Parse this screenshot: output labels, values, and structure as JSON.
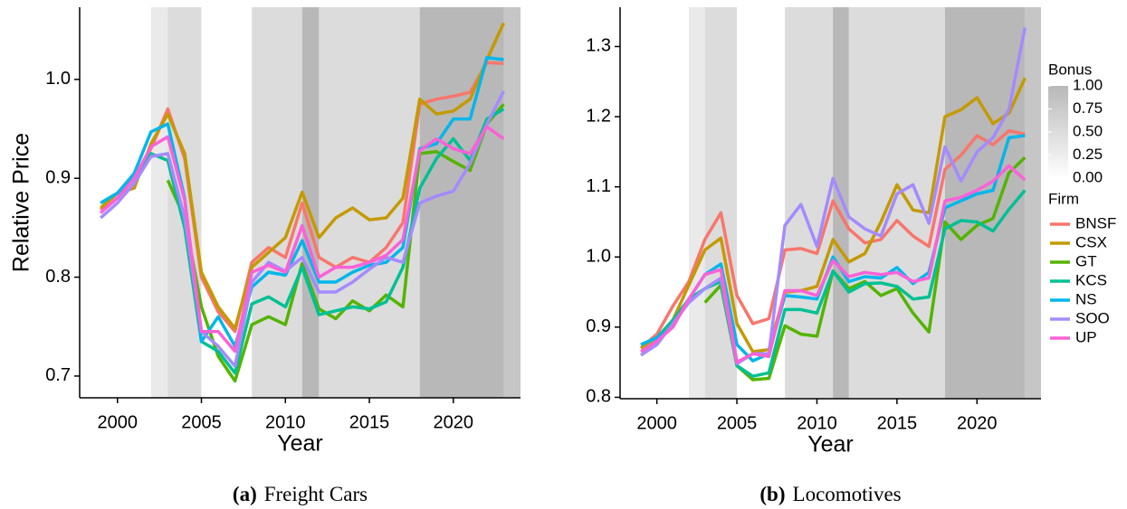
{
  "chart_data": [
    {
      "type": "line",
      "ylabel": "Relative Price",
      "xlabel": "Year",
      "caption": {
        "label": "(a)",
        "text": "Freight Cars"
      },
      "xlim": [
        1997.75,
        2024
      ],
      "xticks": [
        2000,
        2005,
        2010,
        2015,
        2020
      ],
      "ylim": [
        0.678,
        1.073
      ],
      "yticks": [
        0.7,
        0.8,
        0.9,
        {
          "value": 1,
          "label": "1.0"
        }
      ],
      "bonus_periods": [
        {
          "start": 1999,
          "end": 2002,
          "bonus": 0
        },
        {
          "start": 2002,
          "end": 2003,
          "bonus": 0.3
        },
        {
          "start": 2003,
          "end": 2005,
          "bonus": 0.5
        },
        {
          "start": 2005,
          "end": 2008,
          "bonus": 0
        },
        {
          "start": 2008,
          "end": 2011,
          "bonus": 0.5
        },
        {
          "start": 2011,
          "end": 2012,
          "bonus": 1
        },
        {
          "start": 2012,
          "end": 2018,
          "bonus": 0.5
        },
        {
          "start": 2018,
          "end": 2023,
          "bonus": 1
        },
        {
          "start": 2023,
          "end": 2024,
          "bonus": 0.8
        }
      ],
      "x": [
        1999,
        2000,
        2001,
        2002,
        2003,
        2004,
        2005,
        2006,
        2007,
        2008,
        2009,
        2010,
        2011,
        2012,
        2013,
        2014,
        2015,
        2016,
        2017,
        2018,
        2019,
        2020,
        2021,
        2022,
        2023
      ],
      "series": [
        {
          "name": "BNSF",
          "color": "#F8766D",
          "values": [
            0.868,
            0.885,
            0.9,
            0.93,
            0.97,
            0.92,
            0.8,
            0.765,
            0.745,
            0.815,
            0.83,
            0.82,
            0.875,
            0.82,
            0.81,
            0.82,
            0.815,
            0.83,
            0.855,
            0.975,
            0.98,
            0.983,
            0.987,
            1.017,
            1.016
          ]
        },
        {
          "name": "CSX",
          "color": "#C49A00",
          "values": [
            0.87,
            0.885,
            0.89,
            0.935,
            0.965,
            0.925,
            0.805,
            0.77,
            0.748,
            0.81,
            0.825,
            0.84,
            0.886,
            0.84,
            0.86,
            0.87,
            0.858,
            0.86,
            0.88,
            0.98,
            0.965,
            0.968,
            0.98,
            1.02,
            1.057
          ]
        },
        {
          "name": "GT",
          "color": "#53B400",
          "values": [
            null,
            null,
            null,
            null,
            0.898,
            0.86,
            0.77,
            0.72,
            0.695,
            0.752,
            0.76,
            0.752,
            0.814,
            0.768,
            0.758,
            0.776,
            0.766,
            0.782,
            0.77,
            0.925,
            0.927,
            0.917,
            0.908,
            0.955,
            0.975
          ]
        },
        {
          "name": "KCS",
          "color": "#00C094",
          "values": [
            0.875,
            0.885,
            0.9,
            0.925,
            0.918,
            0.85,
            0.735,
            0.725,
            0.703,
            0.773,
            0.78,
            0.77,
            0.81,
            0.762,
            0.766,
            0.77,
            0.768,
            0.775,
            0.81,
            0.89,
            0.92,
            0.94,
            0.918,
            0.96,
            0.97
          ]
        },
        {
          "name": "NS",
          "color": "#00B6EB",
          "values": [
            0.875,
            0.885,
            0.905,
            0.947,
            0.955,
            0.88,
            0.735,
            0.76,
            0.73,
            0.79,
            0.805,
            0.802,
            0.837,
            0.795,
            0.795,
            0.805,
            0.812,
            0.815,
            0.83,
            0.93,
            0.935,
            0.96,
            0.96,
            1.022,
            1.02
          ]
        },
        {
          "name": "SOO",
          "color": "#A58AFF",
          "values": [
            0.86,
            0.875,
            0.895,
            0.922,
            0.925,
            0.86,
            0.745,
            0.73,
            0.71,
            0.795,
            0.815,
            0.806,
            0.82,
            0.785,
            0.785,
            0.795,
            0.808,
            0.82,
            0.815,
            0.875,
            0.882,
            0.887,
            0.915,
            0.955,
            0.988
          ]
        },
        {
          "name": "UP",
          "color": "#FB61D7",
          "values": [
            0.865,
            0.88,
            0.9,
            0.932,
            0.942,
            0.878,
            0.745,
            0.745,
            0.725,
            0.805,
            0.812,
            0.805,
            0.852,
            0.8,
            0.81,
            0.81,
            0.815,
            0.822,
            0.838,
            0.928,
            0.94,
            0.93,
            0.925,
            0.952,
            0.94
          ]
        }
      ]
    },
    {
      "type": "line",
      "xlabel": "Year",
      "caption": {
        "label": "(b)",
        "text": "Locomotives"
      },
      "xlim": [
        1997.7,
        2024
      ],
      "xticks": [
        2000,
        2005,
        2010,
        2015,
        2020
      ],
      "ylim": [
        0.798,
        1.356
      ],
      "yticks": [
        0.8,
        0.9,
        {
          "value": 1,
          "label": "1.0"
        },
        1.1,
        1.2,
        1.3
      ],
      "bonus_periods": [
        {
          "start": 1999,
          "end": 2002,
          "bonus": 0
        },
        {
          "start": 2002,
          "end": 2003,
          "bonus": 0.3
        },
        {
          "start": 2003,
          "end": 2005,
          "bonus": 0.5
        },
        {
          "start": 2005,
          "end": 2008,
          "bonus": 0
        },
        {
          "start": 2008,
          "end": 2011,
          "bonus": 0.5
        },
        {
          "start": 2011,
          "end": 2012,
          "bonus": 1
        },
        {
          "start": 2012,
          "end": 2018,
          "bonus": 0.5
        },
        {
          "start": 2018,
          "end": 2023,
          "bonus": 1
        },
        {
          "start": 2023,
          "end": 2024,
          "bonus": 0.8
        }
      ],
      "bonus_scale": {
        "title": "Bonus",
        "ticks": [
          {
            "value": 1,
            "label": "1.00"
          },
          {
            "value": 0.75,
            "label": "0.75"
          },
          {
            "value": 0.5,
            "label": "0.50"
          },
          {
            "value": 0.25,
            "label": "0.25"
          },
          {
            "value": 0,
            "label": "0.00"
          }
        ]
      },
      "legend_title": "Firm",
      "x": [
        1999,
        2000,
        2001,
        2002,
        2003,
        2004,
        2005,
        2006,
        2007,
        2008,
        2009,
        2010,
        2011,
        2012,
        2013,
        2014,
        2015,
        2016,
        2017,
        2018,
        2019,
        2020,
        2021,
        2022,
        2023
      ],
      "series": [
        {
          "name": "BNSF",
          "color": "#F8766D",
          "values": [
            0.87,
            0.89,
            0.93,
            0.965,
            1.025,
            1.063,
            0.945,
            0.905,
            0.912,
            1.01,
            1.012,
            1.005,
            1.08,
            1.04,
            1.02,
            1.025,
            1.052,
            1.03,
            1.015,
            1.125,
            1.145,
            1.173,
            1.16,
            1.18,
            1.175
          ]
        },
        {
          "name": "CSX",
          "color": "#C49A00",
          "values": [
            0.87,
            0.88,
            0.91,
            0.96,
            1.01,
            1.027,
            0.905,
            0.865,
            0.868,
            0.95,
            0.952,
            0.958,
            1.025,
            0.993,
            1.005,
            1.05,
            1.103,
            1.067,
            1.063,
            1.2,
            1.21,
            1.227,
            1.19,
            1.205,
            1.255
          ]
        },
        {
          "name": "GT",
          "color": "#53B400",
          "values": [
            null,
            null,
            null,
            null,
            0.935,
            0.96,
            0.845,
            0.825,
            0.827,
            0.902,
            0.89,
            0.887,
            0.98,
            0.955,
            0.965,
            0.945,
            0.955,
            0.92,
            0.893,
            1.05,
            1.025,
            1.045,
            1.055,
            1.12,
            1.142
          ]
        },
        {
          "name": "KCS",
          "color": "#00C094",
          "values": [
            0.875,
            0.885,
            0.91,
            0.94,
            0.955,
            0.965,
            0.845,
            0.83,
            0.835,
            0.925,
            0.925,
            0.92,
            0.98,
            0.95,
            0.962,
            0.963,
            0.958,
            0.94,
            0.943,
            1.04,
            1.052,
            1.05,
            1.037,
            1.068,
            1.095
          ]
        },
        {
          "name": "NS",
          "color": "#00B6EB",
          "values": [
            0.875,
            0.885,
            0.9,
            0.94,
            0.975,
            0.99,
            0.875,
            0.852,
            0.862,
            0.945,
            0.943,
            0.94,
            1.0,
            0.965,
            0.972,
            0.97,
            0.985,
            0.962,
            0.978,
            1.07,
            1.08,
            1.09,
            1.095,
            1.17,
            1.173
          ]
        },
        {
          "name": "SOO",
          "color": "#A58AFF",
          "values": [
            0.86,
            0.875,
            0.905,
            0.935,
            0.955,
            0.97,
            0.848,
            0.862,
            0.862,
            1.045,
            1.075,
            1.015,
            1.112,
            1.057,
            1.04,
            1.03,
            1.09,
            1.103,
            1.048,
            1.157,
            1.108,
            1.15,
            1.17,
            1.21,
            1.327
          ]
        },
        {
          "name": "UP",
          "color": "#FB61D7",
          "values": [
            0.865,
            0.88,
            0.9,
            0.94,
            0.975,
            0.982,
            0.85,
            0.862,
            0.858,
            0.952,
            0.952,
            0.945,
            0.995,
            0.972,
            0.978,
            0.975,
            0.978,
            0.965,
            0.97,
            1.08,
            1.085,
            1.095,
            1.108,
            1.13,
            1.11
          ]
        }
      ]
    }
  ]
}
